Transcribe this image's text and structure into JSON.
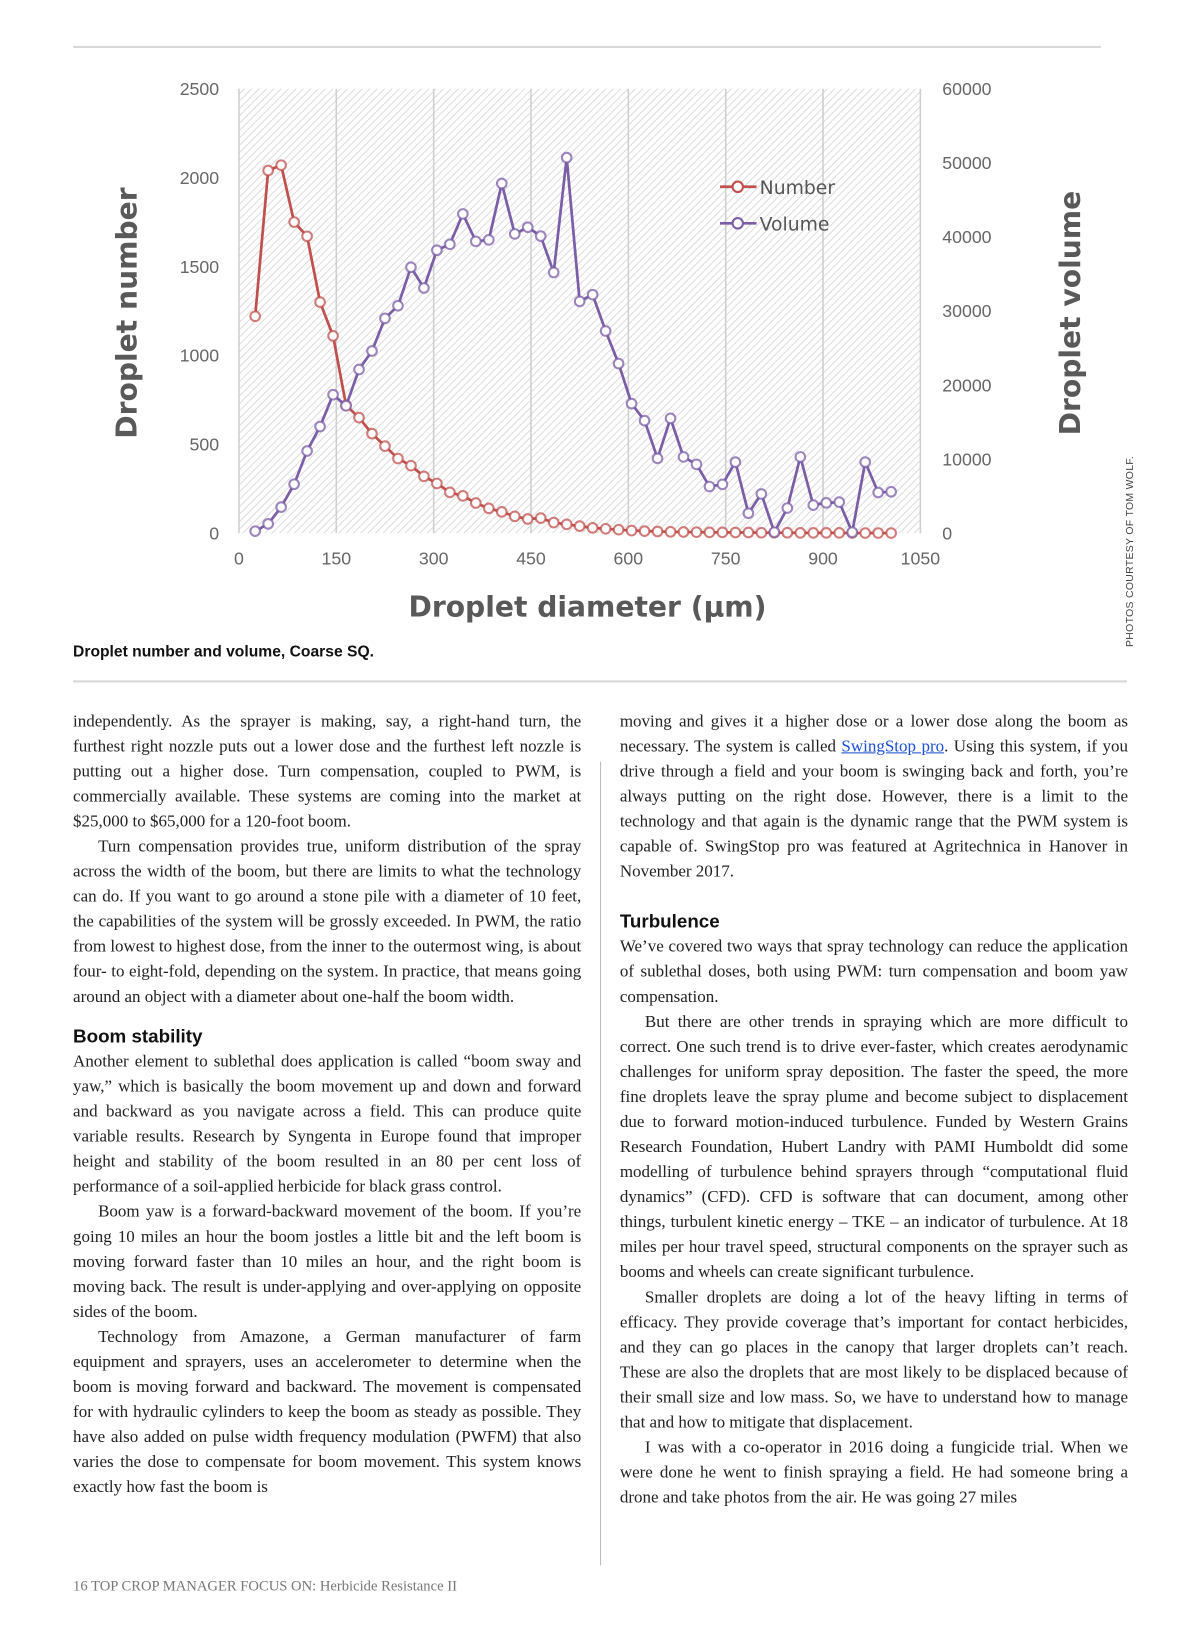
{
  "chart_data": {
    "type": "line",
    "xlabel": "Droplet diameter (µm)",
    "ylabel": "Droplet number",
    "y2label": "Droplet volume",
    "xlim": [
      0,
      1050
    ],
    "ylim": [
      0,
      2500
    ],
    "y2lim": [
      0,
      60000
    ],
    "xticks": [
      "0",
      "150",
      "300",
      "450",
      "600",
      "750",
      "900",
      "1050"
    ],
    "yticks": [
      "0",
      "500",
      "1000",
      "1500",
      "2000",
      "2500"
    ],
    "y2ticks": [
      "0",
      "10000",
      "20000",
      "30000",
      "40000",
      "50000",
      "60000"
    ],
    "legend": "top-right",
    "x_start": 25,
    "x_step": 20,
    "series": [
      {
        "name": "Number",
        "color": "#c0504d",
        "axis": "left",
        "values": [
          1220,
          2040,
          2070,
          1750,
          1670,
          1300,
          1110,
          720,
          650,
          560,
          490,
          420,
          380,
          320,
          280,
          230,
          210,
          170,
          140,
          120,
          95,
          80,
          85,
          60,
          50,
          40,
          30,
          25,
          20,
          15,
          12,
          10,
          8,
          7,
          6,
          5,
          5,
          4,
          4,
          3,
          3,
          3,
          2,
          2,
          2,
          2,
          1,
          1,
          1,
          1
        ]
      },
      {
        "name": "Volume",
        "color": "#7b5ea7",
        "axis": "right",
        "values": [
          280,
          1270,
          3520,
          6620,
          11100,
          14400,
          18700,
          17200,
          22100,
          24600,
          29000,
          30700,
          35900,
          33100,
          38200,
          39000,
          43100,
          39400,
          39600,
          47200,
          40400,
          41300,
          40100,
          35200,
          50700,
          31300,
          32200,
          27300,
          22900,
          17500,
          15200,
          10100,
          15500,
          10300,
          9300,
          6300,
          6600,
          9600,
          2700,
          5300,
          140,
          3400,
          10300,
          3800,
          4100,
          4200,
          140,
          9600,
          5500,
          5600
        ]
      }
    ]
  },
  "caption": "Droplet number and volume, Coarse SQ.",
  "credit": "PHOTOS COURTESY OF TOM WOLF.",
  "left_col": {
    "p1": "independently. As the sprayer is making, say, a right-hand turn, the furthest right nozzle puts out a lower dose and the furthest left nozzle is putting out a higher dose. Turn compensation, coupled to PWM, is commercially available. These systems are coming into the market at $25,000 to $65,000 for a 120-foot boom.",
    "p2": "Turn compensation provides true, uniform distribution of the spray across the width of the boom, but there are limits to what the technology can do. If you want to go around a stone pile with a diameter of 10 feet, the capabilities of the system will be grossly exceeded. In PWM, the ratio from lowest to highest dose, from the inner to the outermost wing, is about four- to eight-fold, depending on the system. In practice, that means going around an object with a diameter about one-half the boom width.",
    "h1": "Boom stability",
    "p3": "Another element to sublethal does application is called “boom sway and yaw,” which is basically the boom movement up and down and forward and backward as you navigate across a field. This can produce quite variable results. Research by Syngenta in Europe found that improper height and stability of the boom resulted in an 80 per cent loss of performance of a soil-applied herbicide for black grass control.",
    "p4": "Boom yaw is a forward-backward movement of the boom. If you’re going 10 miles an hour the boom jostles a little bit and the left boom is moving forward faster than 10 miles an hour, and the right boom is moving back. The result is under-applying and over-applying on opposite sides of the boom.",
    "p5": "Technology from Amazone, a German manufacturer of farm equipment and sprayers, uses an accelerometer to determine when the boom is moving forward and backward. The movement is compensated for with hydraulic cylinders to keep the boom as steady as possible. They have also added on pulse width frequency modulation (PWFM) that also varies the dose to compensate for boom movement. This system knows exactly how fast the boom is"
  },
  "right_col": {
    "p1a": "moving and gives it a higher dose or a lower dose along the boom as necessary. The system is called ",
    "link": "SwingStop pro",
    "p1b": ". Using this system, if you drive through a field and your boom is swinging back and forth, you’re always putting on the right dose. However, there is a limit to the technology and that again is the dynamic range that the PWM system is capable of. SwingStop pro was featured at Agritechnica in Hanover in November 2017.",
    "h1": "Turbulence",
    "p2": "We’ve covered two ways that spray technology can reduce the application of sublethal doses, both using PWM: turn compensation and boom yaw compensation.",
    "p3": "But there are other trends in spraying which are more difficult to correct. One such trend is to drive ever-faster, which creates aerodynamic challenges for uniform spray deposition. The faster the speed, the more fine droplets leave the spray plume and become subject to displacement due to forward motion-induced turbulence. Funded by Western Grains Research Foundation, Hubert Landry with PAMI Humboldt did some modelling of turbulence behind sprayers through “computational fluid dynamics” (CFD). CFD is software that can document, among other things, turbulent kinetic energy – TKE – an indicator of turbulence. At 18 miles per hour travel speed, structural components on the sprayer such as booms and wheels can create significant turbulence.",
    "p4": "Smaller droplets are doing a lot of the heavy lifting in terms of efficacy. They provide coverage that’s important for contact herbicides, and they can go places in the canopy that larger droplets can’t reach. These are also the droplets that are most likely to be displaced because of their small size and low mass. So, we have to understand how to manage that and how to mitigate that displacement.",
    "p5": "I was with a co-operator in 2016 doing a fungicide trial. When we were done he went to finish spraying a field. He had someone bring a drone and take photos from the air. He was going 27 miles"
  },
  "footer": "16  TOP CROP MANAGER FOCUS ON: Herbicide Resistance II"
}
